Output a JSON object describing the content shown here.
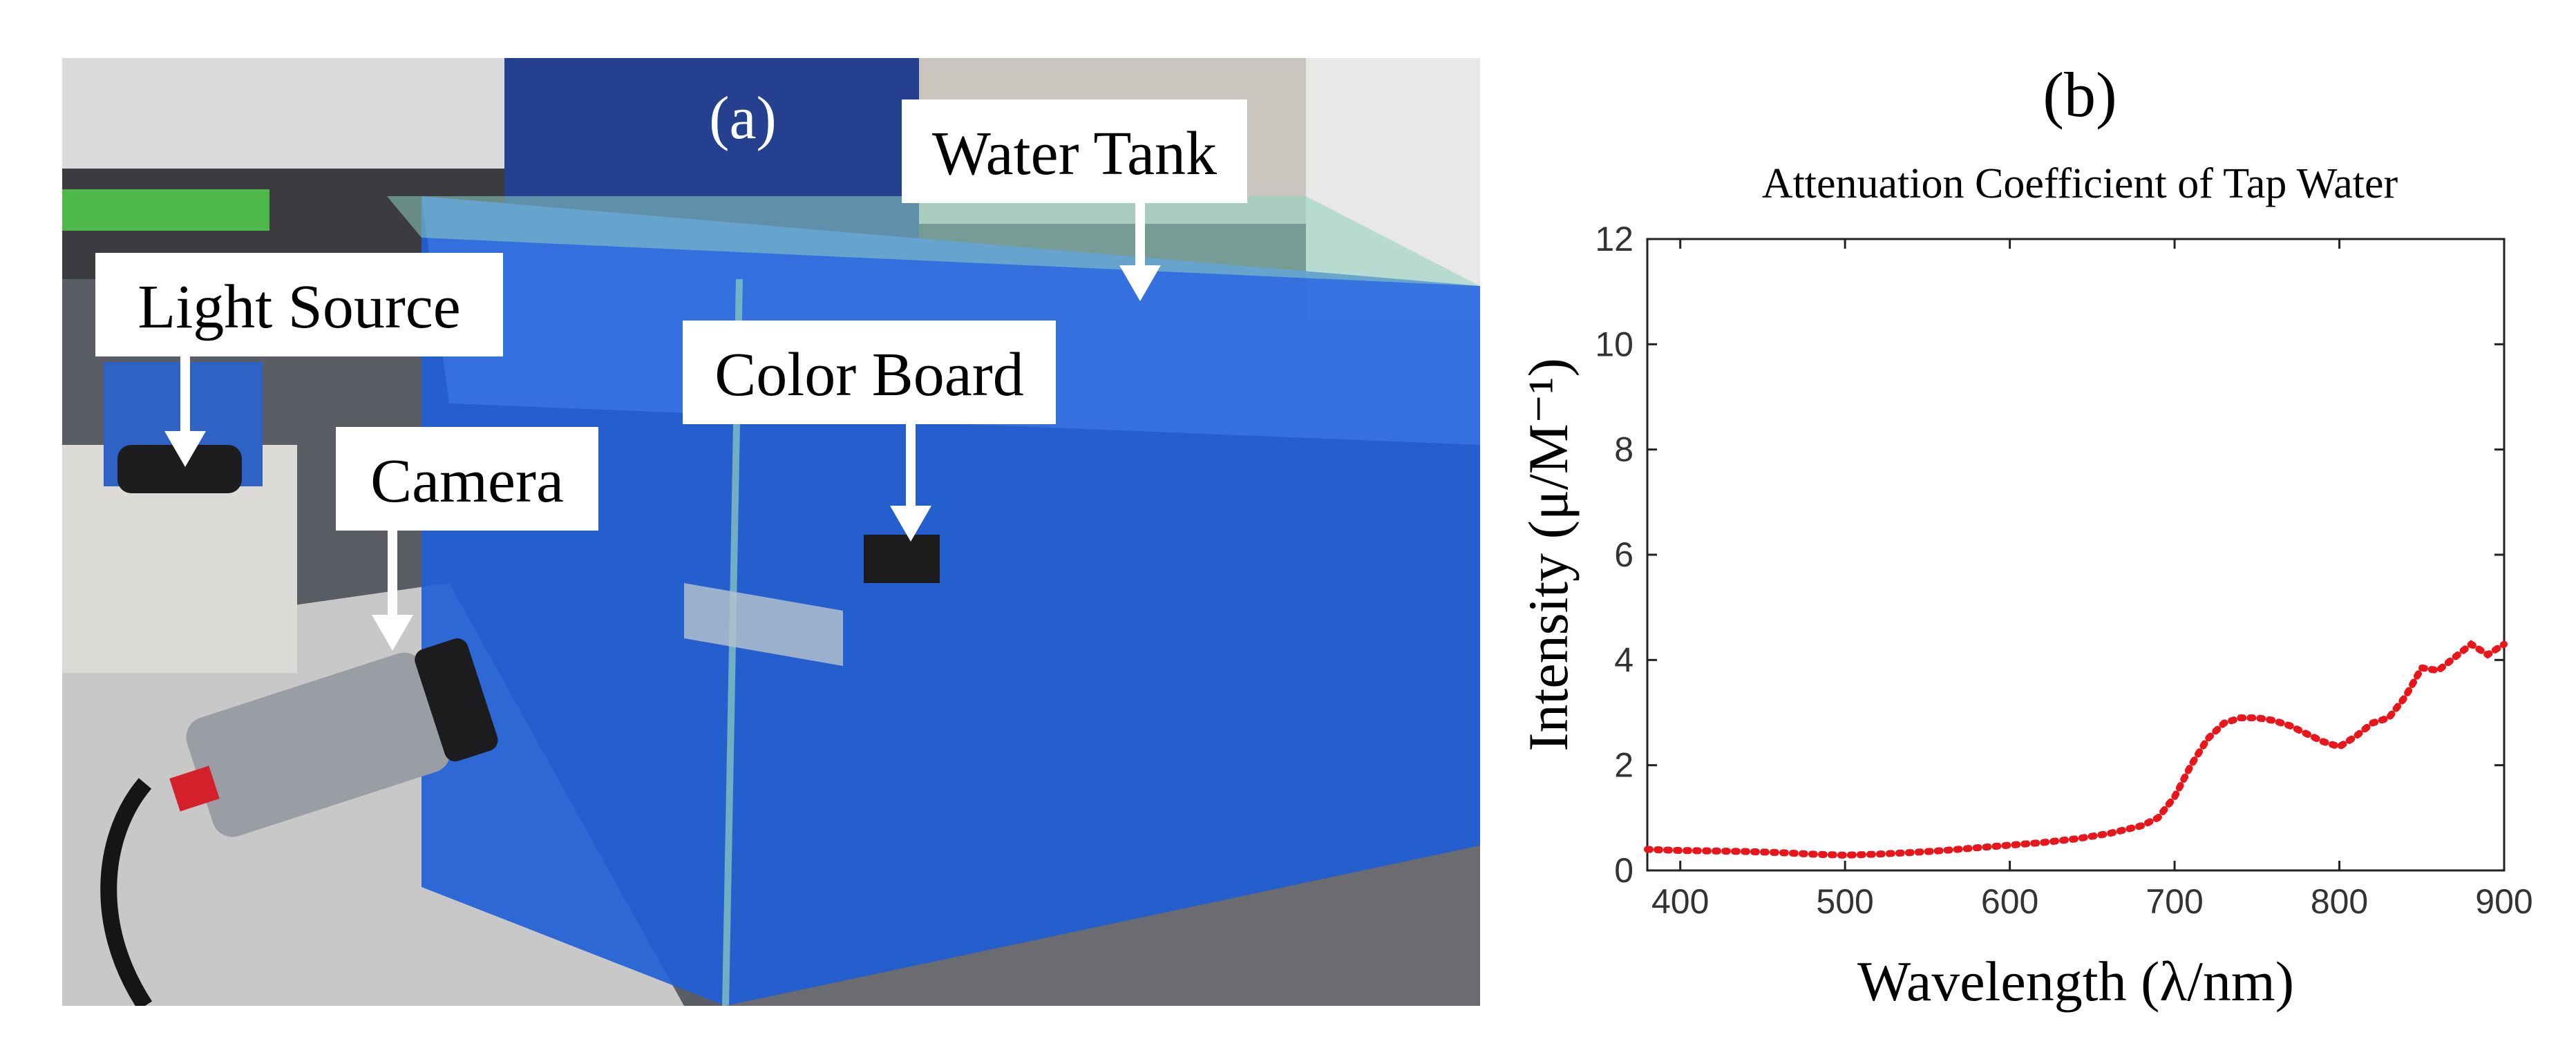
{
  "panel_a": {
    "tag": "(a)",
    "labels": {
      "water_tank": "Water Tank",
      "light_source": "Light Source",
      "color_board": "Color Board",
      "camera": "Camera"
    },
    "colors": {
      "water": "#1f5fd6",
      "table": "#c8c8c8",
      "shelf": "#2a4fae"
    }
  },
  "panel_b": {
    "tag": "(b)",
    "chart_data": {
      "type": "line",
      "title": "Attenuation Coefficient of Tap Water",
      "xlabel": "Wavelength (λ/nm)",
      "ylabel": "Intensity (μ/M⁻¹)",
      "xlim": [
        380,
        900
      ],
      "ylim": [
        0,
        12
      ],
      "x_ticks": [
        400,
        500,
        600,
        700,
        800,
        900
      ],
      "y_ticks": [
        0,
        2,
        4,
        6,
        8,
        10,
        12
      ],
      "grid": false,
      "line_style": "dotted",
      "color": "#e8161b",
      "series": [
        {
          "x": [
            380,
            400,
            420,
            440,
            460,
            480,
            500,
            520,
            540,
            560,
            580,
            600,
            620,
            640,
            660,
            680,
            690,
            700,
            710,
            720,
            730,
            740,
            750,
            760,
            770,
            780,
            790,
            800,
            810,
            820,
            830,
            840,
            850,
            860,
            870,
            880,
            890,
            900
          ],
          "y": [
            0.4,
            0.38,
            0.37,
            0.36,
            0.34,
            0.31,
            0.29,
            0.31,
            0.34,
            0.38,
            0.43,
            0.48,
            0.53,
            0.6,
            0.7,
            0.85,
            1.0,
            1.4,
            2.0,
            2.5,
            2.8,
            2.9,
            2.9,
            2.85,
            2.75,
            2.6,
            2.45,
            2.35,
            2.55,
            2.8,
            2.9,
            3.3,
            3.85,
            3.8,
            4.05,
            4.3,
            4.1,
            4.3
          ]
        }
      ]
    }
  }
}
